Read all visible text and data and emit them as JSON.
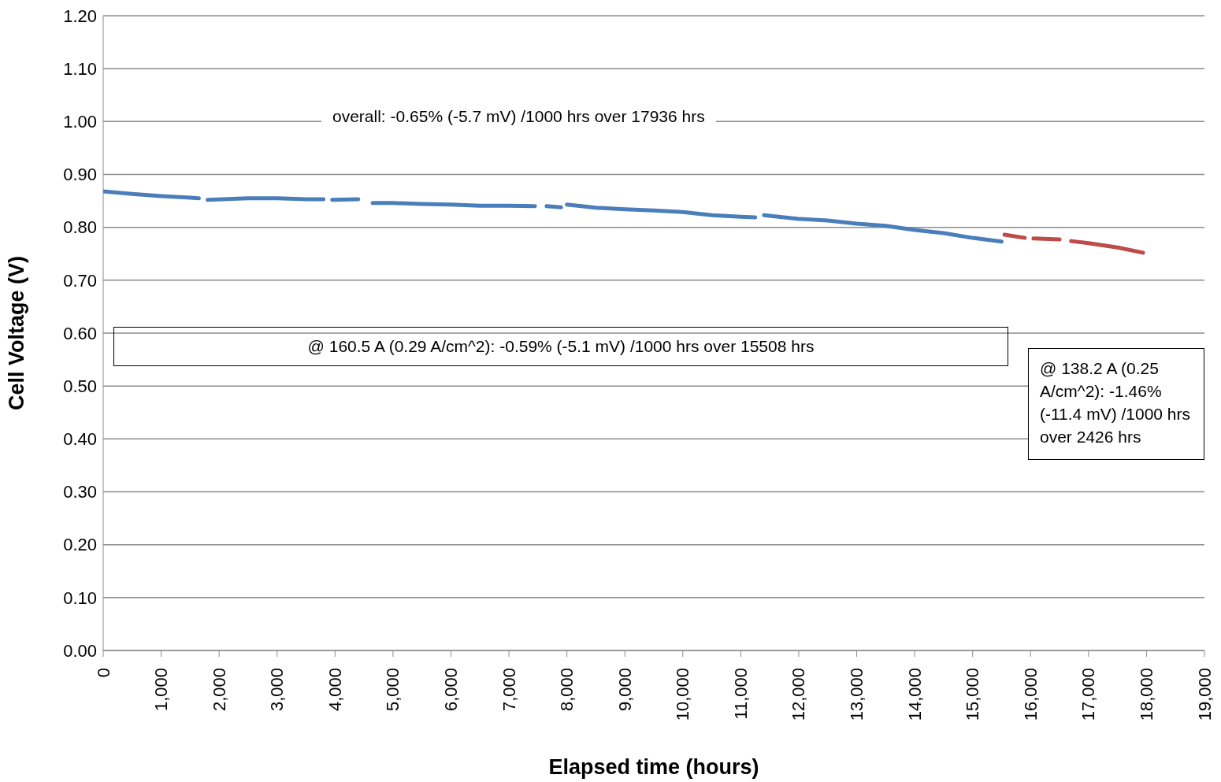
{
  "chart_data": {
    "type": "line",
    "xlabel": "Elapsed time (hours)",
    "ylabel": "Cell Voltage (V)",
    "xlim": [
      0,
      19000
    ],
    "xticks": [
      0,
      {
        "value": 1000,
        "label": "1,000"
      },
      {
        "value": 2000,
        "label": "2,000"
      },
      {
        "value": 3000,
        "label": "3,000"
      },
      {
        "value": 4000,
        "label": "4,000"
      },
      {
        "value": 5000,
        "label": "5,000"
      },
      {
        "value": 6000,
        "label": "6,000"
      },
      {
        "value": 7000,
        "label": "7,000"
      },
      {
        "value": 8000,
        "label": "8,000"
      },
      {
        "value": 9000,
        "label": "9,000"
      },
      {
        "value": 10000,
        "label": "10,000"
      },
      {
        "value": 11000,
        "label": "11,000"
      },
      {
        "value": 12000,
        "label": "12,000"
      },
      {
        "value": 13000,
        "label": "13,000"
      },
      {
        "value": 14000,
        "label": "14,000"
      },
      {
        "value": 15000,
        "label": "15,000"
      },
      {
        "value": 16000,
        "label": "16,000"
      },
      {
        "value": 17000,
        "label": "17,000"
      },
      {
        "value": 18000,
        "label": "18,000"
      },
      {
        "value": 19000,
        "label": "19,000"
      }
    ],
    "ylim": [
      0,
      1.2
    ],
    "yticks": [
      {
        "value": 0,
        "label": "0.00"
      },
      {
        "value": 0.1,
        "label": "0.10"
      },
      {
        "value": 0.2,
        "label": "0.20"
      },
      {
        "value": 0.3,
        "label": "0.30"
      },
      {
        "value": 0.4,
        "label": "0.40"
      },
      {
        "value": 0.5,
        "label": "0.50"
      },
      {
        "value": 0.6,
        "label": "0.60"
      },
      {
        "value": 0.7,
        "label": "0.70"
      },
      {
        "value": 0.8,
        "label": "0.80"
      },
      {
        "value": 0.9,
        "label": "0.90"
      },
      {
        "value": 1.0,
        "label": "1.00"
      },
      {
        "value": 1.1,
        "label": "1.10"
      },
      {
        "value": 1.2,
        "label": "1.20"
      }
    ],
    "grid": "y",
    "marker": "none",
    "line_style": "solid",
    "series": [
      {
        "color": "#4a7ebb",
        "x": [
          0,
          500,
          1000,
          1500,
          1650,
          1720,
          1800,
          2500,
          3000,
          3500,
          3800,
          3880,
          3950,
          4400,
          4550,
          4650,
          5000,
          5500,
          6000,
          6500,
          7000,
          7450,
          7550,
          7650,
          7900,
          7950,
          8000,
          8500,
          9000,
          9500,
          10000,
          10500,
          11000,
          11250,
          11320,
          11400,
          12000,
          12500,
          13000,
          13500,
          14000,
          14500,
          15000,
          15500
        ],
        "values": [
          0.868,
          0.863,
          0.859,
          0.856,
          0.855,
          null,
          0.852,
          0.855,
          0.855,
          0.853,
          0.853,
          null,
          0.852,
          0.853,
          null,
          0.846,
          0.846,
          0.844,
          0.843,
          0.841,
          0.841,
          0.84,
          null,
          0.84,
          0.838,
          null,
          0.843,
          0.837,
          0.834,
          0.832,
          0.829,
          0.823,
          0.82,
          0.819,
          null,
          0.823,
          0.816,
          0.813,
          0.807,
          0.803,
          0.795,
          0.789,
          0.78,
          0.773
        ]
      },
      {
        "color": "#be4b48",
        "x": [
          15550,
          15900,
          15980,
          16050,
          16500,
          16600,
          16700,
          17000,
          17500,
          17940
        ],
        "values": [
          0.786,
          0.78,
          null,
          0.779,
          0.777,
          null,
          0.774,
          0.77,
          0.762,
          0.752
        ]
      }
    ],
    "annotations": [
      "overall: -0.65% (-5.7 mV)  /1000 hrs over 17936 hrs",
      "@ 160.5 A (0.29 A/cm^2):  -0.59% (-5.1 mV)  /1000 hrs over 15508 hrs",
      "@ 138.2 A (0.25 A/cm^2):  -1.46% (-11.4 mV)  /1000 hrs over 2426 hrs"
    ]
  }
}
